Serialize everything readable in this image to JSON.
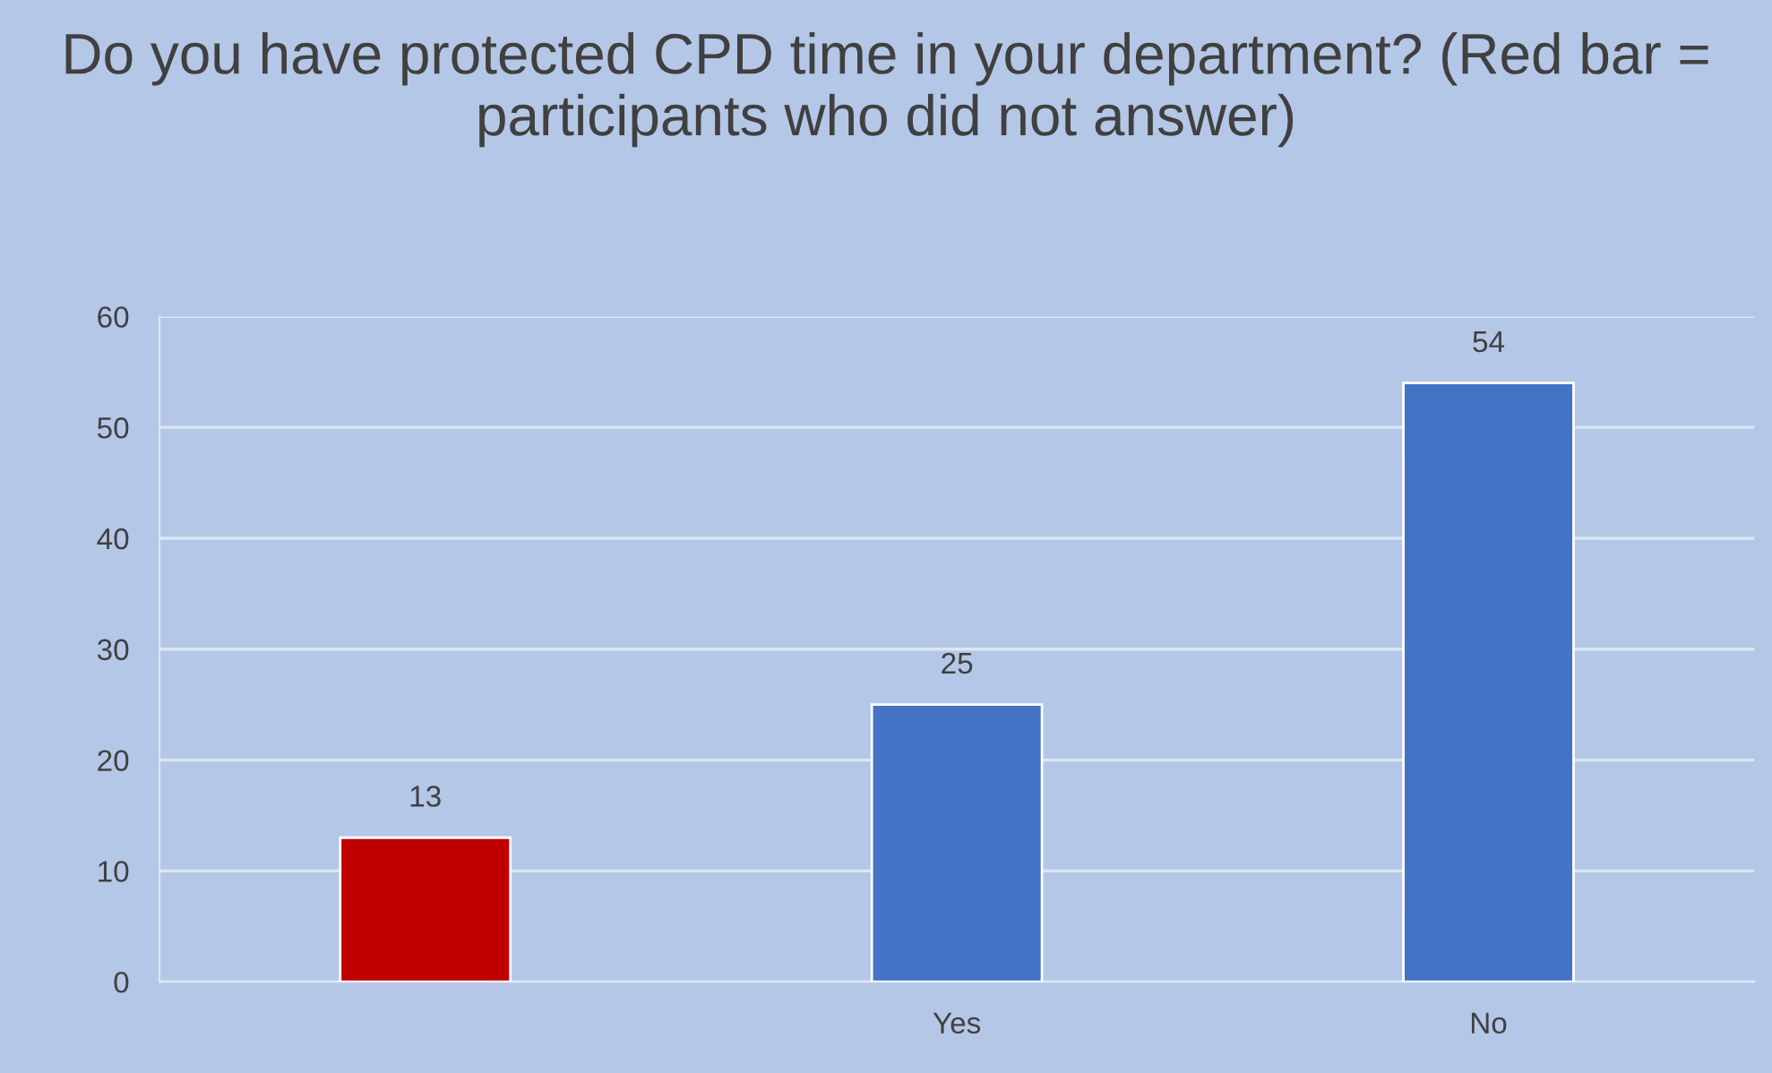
{
  "chart_data": {
    "type": "bar",
    "title": "Do you have protected CPD time in your department? (Red bar = participants who did not answer)",
    "categories": [
      null,
      "Yes",
      "No"
    ],
    "values": [
      13,
      25,
      54
    ],
    "colors": [
      "#c00000",
      "#4472c4",
      "#4472c4"
    ],
    "ylim": [
      0,
      60
    ],
    "yticks": [
      0,
      10,
      20,
      30,
      40,
      50,
      60
    ],
    "grid": "y",
    "data_labels": true
  }
}
